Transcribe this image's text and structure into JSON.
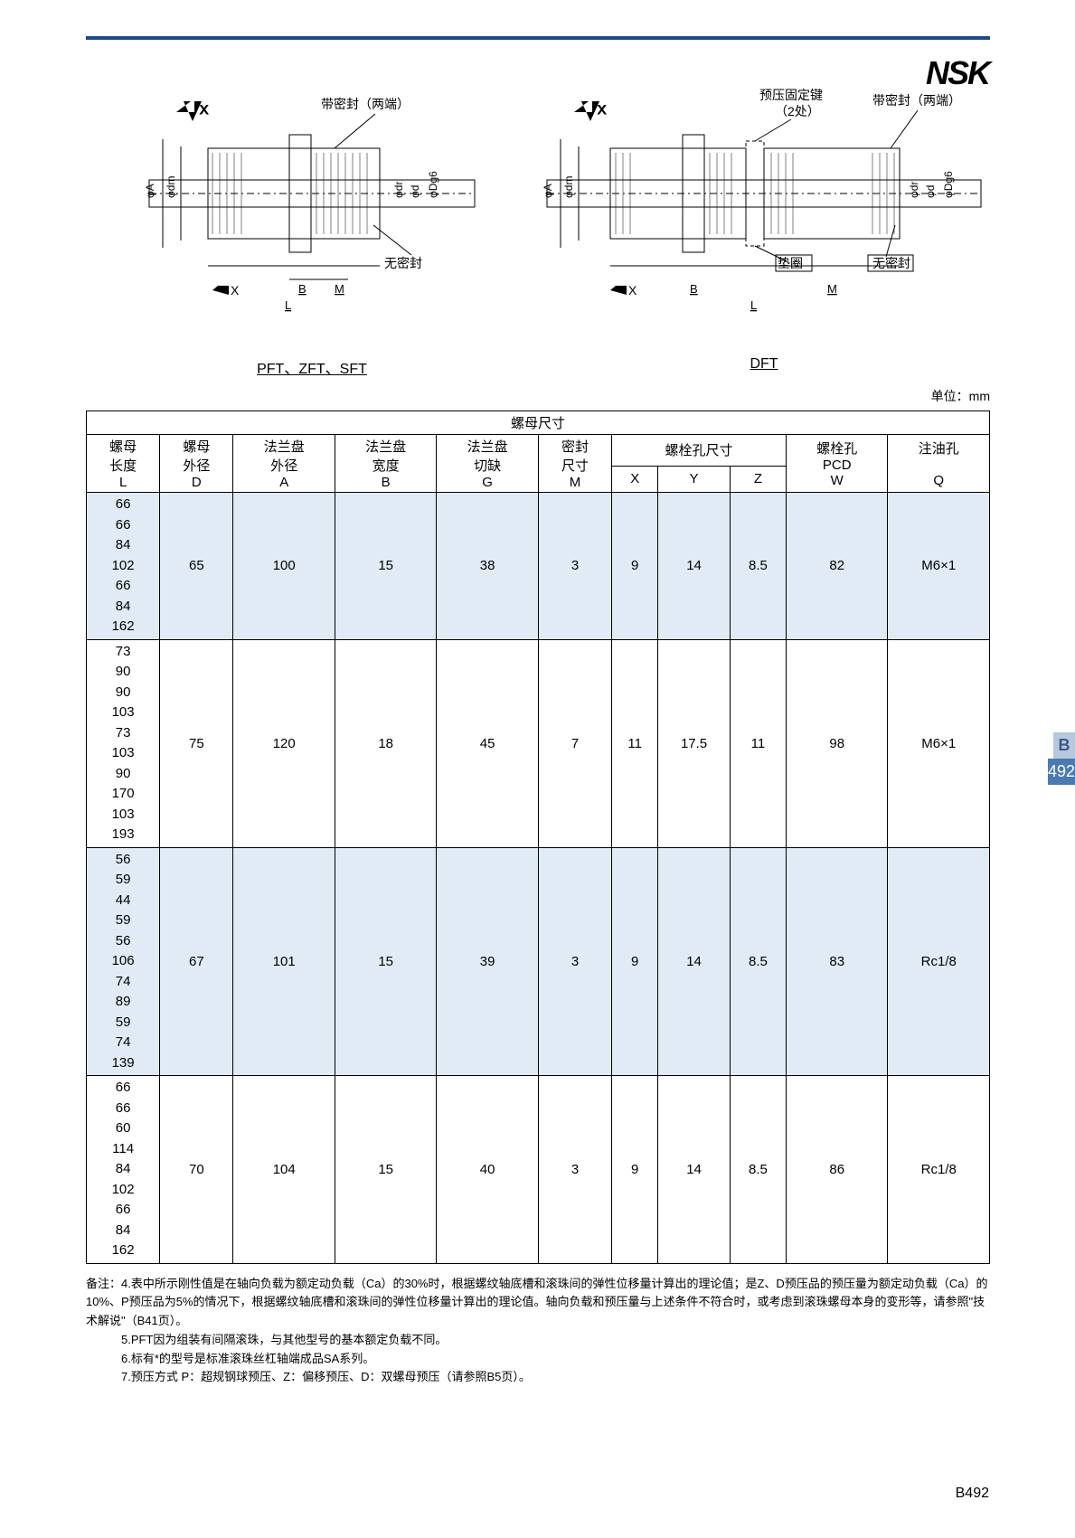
{
  "brand": "NSK",
  "diagram_left": {
    "seal_both": "带密封（两端）",
    "no_seal": "无密封",
    "x_sym": "X",
    "labels": [
      "φA",
      "φdm",
      "φdr",
      "φd",
      "φDg6"
    ],
    "dims": [
      "B",
      "M",
      "L"
    ]
  },
  "diagram_right": {
    "seal_both": "带密封（两端）",
    "no_seal": "无密封",
    "key": "预压固定键",
    "key_count": "（2处）",
    "spacer": "垫圈",
    "x_sym": "X",
    "labels": [
      "φA",
      "φdm",
      "φdr",
      "φd",
      "φDg6"
    ],
    "dims": [
      "B",
      "M",
      "L"
    ]
  },
  "fig_label_left": "PFT、ZFT、SFT",
  "fig_label_right": "DFT",
  "unit_label": "单位：mm",
  "table": {
    "group_header": "螺母尺寸",
    "headers": {
      "L": {
        "t1": "螺母",
        "t2": "长度",
        "sym": "L"
      },
      "D": {
        "t1": "螺母",
        "t2": "外径",
        "sym": "D"
      },
      "A": {
        "t1": "法兰盘",
        "t2": "外径",
        "sym": "A"
      },
      "B": {
        "t1": "法兰盘",
        "t2": "宽度",
        "sym": "B"
      },
      "G": {
        "t1": "法兰盘",
        "t2": "切缺",
        "sym": "G"
      },
      "M": {
        "t1": "密封",
        "t2": "尺寸",
        "sym": "M"
      },
      "bolt": "螺栓孔尺寸",
      "X": "X",
      "Y": "Y",
      "Z": "Z",
      "W": {
        "t1": "螺栓孔",
        "t2": "PCD",
        "sym": "W"
      },
      "Q": {
        "t1": "注油孔",
        "sym": "Q"
      }
    },
    "rows": [
      {
        "shade": true,
        "L": [
          "66",
          "66",
          "84",
          "102",
          "66",
          "84",
          "162"
        ],
        "D": "65",
        "A": "100",
        "B": "15",
        "G": "38",
        "M": "3",
        "X": "9",
        "Y": "14",
        "Z": "8.5",
        "W": "82",
        "Q": "M6×1"
      },
      {
        "shade": false,
        "L": [
          "73",
          "90",
          "90",
          "103",
          "73",
          "103",
          "90",
          "170",
          "103",
          "193"
        ],
        "D": "75",
        "A": "120",
        "B": "18",
        "G": "45",
        "M": "7",
        "X": "11",
        "Y": "17.5",
        "Z": "11",
        "W": "98",
        "Q": "M6×1"
      },
      {
        "shade": true,
        "L": [
          "56",
          "59",
          "44",
          "59",
          "56",
          "106",
          "74",
          "89",
          "59",
          "74",
          "139"
        ],
        "D": "67",
        "A": "101",
        "B": "15",
        "G": "39",
        "M": "3",
        "X": "9",
        "Y": "14",
        "Z": "8.5",
        "W": "83",
        "Q": "Rc1/8"
      },
      {
        "shade": false,
        "L": [
          "66",
          "66",
          "60",
          "114",
          "84",
          "102",
          "66",
          "84",
          "162"
        ],
        "D": "70",
        "A": "104",
        "B": "15",
        "G": "40",
        "M": "3",
        "X": "9",
        "Y": "14",
        "Z": "8.5",
        "W": "86",
        "Q": "Rc1/8"
      }
    ]
  },
  "notes": {
    "prefix": "备注：",
    "items": [
      "4.表中所示刚性值是在轴向负载为额定动负载（Ca）的30%时，根据螺纹轴底槽和滚珠间的弹性位移量计算出的理论值；是Z、D预压品的预压量为额定动负载（Ca）的10%、P预压品为5%的情况下，根据螺纹轴底槽和滚珠间的弹性位移量计算出的理论值。轴向负载和预压量与上述条件不符合时，或考虑到滚珠螺母本身的变形等，请参照\"技术解说\"（B41页）。",
      "5.PFT因为组装有间隔滚珠，与其他型号的基本额定负载不同。",
      "6.标有*的型号是标准滚珠丝杠轴端成品SA系列。",
      "7.预压方式 P：超规钢球预压、Z：偏移预压、D：双螺母预压（请参照B5页）。"
    ]
  },
  "side_tab": {
    "letter": "B",
    "num": "492"
  },
  "page_number": "B492"
}
